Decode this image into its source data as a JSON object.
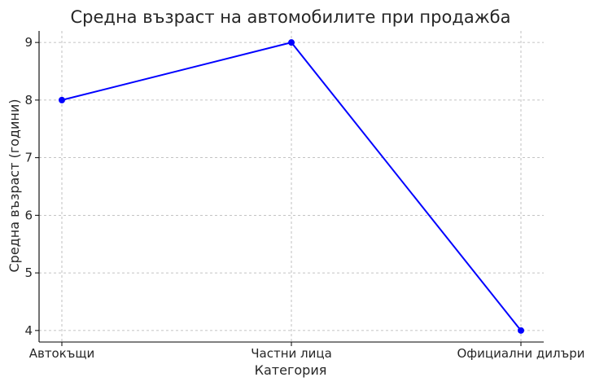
{
  "chart_data": {
    "type": "line",
    "title": "Средна възраст на автомобилите при продажба",
    "xlabel": "Категория",
    "ylabel": "Средна възраст (години)",
    "categories": [
      "Автокъщи",
      "Частни лица",
      "Официални дилъри"
    ],
    "series": [
      {
        "values": [
          8,
          9,
          4
        ],
        "color": "#0000ff",
        "marker": "circle"
      }
    ],
    "ylim": [
      3.8,
      9.2
    ],
    "yticks": [
      4,
      5,
      6,
      7,
      8,
      9
    ],
    "grid": true,
    "legend": false
  }
}
